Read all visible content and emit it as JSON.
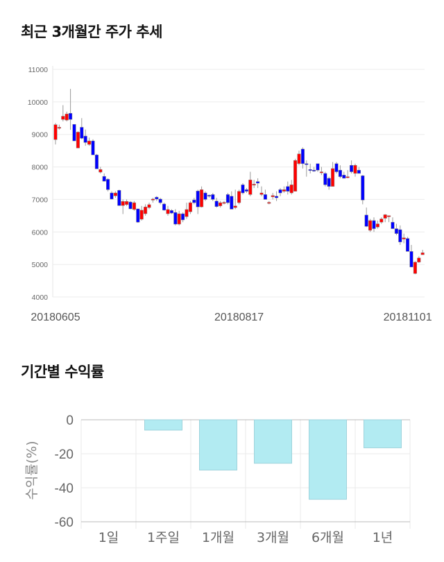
{
  "chart_data": [
    {
      "type": "candlestick",
      "title": "최근 3개월간 주가 추세",
      "ylim": [
        4000,
        11000
      ],
      "yticks": [
        4000,
        5000,
        6000,
        7000,
        8000,
        9000,
        10000,
        11000
      ],
      "x_tick_labels": [
        {
          "index": 0,
          "label": "20180605"
        },
        {
          "index": 49,
          "label": "20180817"
        },
        {
          "index": 94,
          "label": "20181101"
        }
      ],
      "grid": true,
      "colors": {
        "up": "#ff0000",
        "down": "#0000ff"
      },
      "ohlc_fields": [
        "open",
        "high",
        "low",
        "close"
      ],
      "ohlc": [
        [
          8840,
          9350,
          8690,
          9300
        ],
        [
          9200,
          9300,
          9150,
          9220
        ],
        [
          9460,
          9900,
          9400,
          9560
        ],
        [
          9440,
          9700,
          9400,
          9630
        ],
        [
          9650,
          10400,
          9140,
          9460
        ],
        [
          9310,
          9310,
          8800,
          8800
        ],
        [
          8580,
          9100,
          8580,
          9070
        ],
        [
          9220,
          9500,
          8850,
          8880
        ],
        [
          8950,
          9150,
          8650,
          8750
        ],
        [
          8690,
          8900,
          8650,
          8800
        ],
        [
          8800,
          8850,
          8370,
          8370
        ],
        [
          8370,
          8400,
          7940,
          7940
        ],
        [
          7840,
          8000,
          7800,
          7920
        ],
        [
          7710,
          7800,
          7560,
          7560
        ],
        [
          7620,
          7650,
          7250,
          7300
        ],
        [
          7200,
          7250,
          7000,
          7010
        ],
        [
          7110,
          7250,
          7050,
          7200
        ],
        [
          7280,
          7300,
          6800,
          6810
        ],
        [
          6810,
          7000,
          6550,
          6940
        ],
        [
          6840,
          7000,
          6800,
          6940
        ],
        [
          6920,
          6950,
          6700,
          6710
        ],
        [
          6690,
          6950,
          6650,
          6900
        ],
        [
          6710,
          6710,
          6280,
          6300
        ],
        [
          6390,
          6800,
          6350,
          6670
        ],
        [
          6560,
          6850,
          6500,
          6770
        ],
        [
          6750,
          6900,
          6700,
          6840
        ],
        [
          6990,
          7050,
          6900,
          7010
        ],
        [
          7070,
          7100,
          6950,
          7010
        ],
        [
          7010,
          7050,
          6850,
          6900
        ],
        [
          6860,
          6900,
          6650,
          6670
        ],
        [
          6560,
          6800,
          6500,
          6690
        ],
        [
          6660,
          6700,
          6550,
          6580
        ],
        [
          6600,
          6700,
          6200,
          6240
        ],
        [
          6240,
          6650,
          6200,
          6560
        ],
        [
          6560,
          6600,
          6300,
          6370
        ],
        [
          6470,
          6900,
          6400,
          6690
        ],
        [
          6620,
          6950,
          6550,
          6900
        ],
        [
          6985,
          7050,
          6850,
          6900
        ],
        [
          7260,
          7300,
          6550,
          6770
        ],
        [
          6770,
          7400,
          6750,
          7300
        ],
        [
          7200,
          7250,
          6950,
          7000
        ],
        [
          7130,
          7150,
          7050,
          7100
        ],
        [
          7150,
          7200,
          6950,
          7000
        ],
        [
          6950,
          7050,
          6750,
          6780
        ],
        [
          6800,
          6950,
          6750,
          6900
        ],
        [
          6900,
          6950,
          6850,
          6910
        ],
        [
          7150,
          7200,
          6850,
          6900
        ],
        [
          7100,
          7250,
          6700,
          6700
        ],
        [
          6750,
          7300,
          6700,
          6800
        ],
        [
          6900,
          7300,
          6850,
          7250
        ],
        [
          7450,
          7500,
          7150,
          7200
        ],
        [
          7300,
          7350,
          7200,
          7250
        ],
        [
          7150,
          7850,
          7100,
          7600
        ],
        [
          7450,
          7600,
          7350,
          7470
        ],
        [
          7550,
          7650,
          7350,
          7500
        ],
        [
          7150,
          7400,
          7100,
          7200
        ],
        [
          7150,
          7300,
          7000,
          7000
        ],
        [
          6900,
          6950,
          6850,
          6910
        ],
        [
          7080,
          7200,
          7000,
          7120
        ],
        [
          7100,
          7250,
          6950,
          7050
        ],
        [
          7300,
          7350,
          7100,
          7200
        ],
        [
          7250,
          7400,
          7200,
          7300
        ],
        [
          7400,
          7550,
          7150,
          7250
        ],
        [
          7200,
          7600,
          7150,
          7450
        ],
        [
          7250,
          8250,
          7250,
          8200
        ],
        [
          8100,
          8500,
          8050,
          8400
        ],
        [
          8550,
          8600,
          7950,
          8100
        ],
        [
          8100,
          8200,
          7700,
          8080
        ],
        [
          7920,
          8100,
          7800,
          7900
        ],
        [
          7900,
          8000,
          7850,
          7880
        ],
        [
          8100,
          8100,
          7850,
          7900
        ],
        [
          7850,
          8000,
          7750,
          7850
        ],
        [
          7800,
          7850,
          7400,
          7450
        ],
        [
          7650,
          7700,
          7300,
          7400
        ],
        [
          7400,
          8150,
          7400,
          7950
        ],
        [
          8100,
          8150,
          7800,
          7850
        ],
        [
          7900,
          8050,
          7650,
          7700
        ],
        [
          7750,
          7850,
          7650,
          7650
        ],
        [
          7700,
          7900,
          7650,
          7700
        ],
        [
          8050,
          8200,
          7800,
          7850
        ],
        [
          7800,
          8100,
          7700,
          8050
        ],
        [
          7900,
          8000,
          7800,
          7800
        ],
        [
          7730,
          7750,
          6850,
          6980
        ],
        [
          6520,
          6750,
          6150,
          6170
        ],
        [
          6050,
          6400,
          6000,
          6350
        ],
        [
          6350,
          6450,
          6000,
          6100
        ],
        [
          6150,
          6350,
          6100,
          6250
        ],
        [
          6300,
          6450,
          6250,
          6400
        ],
        [
          6420,
          6550,
          6300,
          6530
        ],
        [
          6500,
          6500,
          6300,
          6500
        ],
        [
          6300,
          6450,
          6100,
          6100
        ],
        [
          6100,
          6250,
          5900,
          5950
        ],
        [
          6070,
          6200,
          5600,
          5690
        ],
        [
          5780,
          5950,
          5650,
          5820
        ],
        [
          5800,
          5850,
          5400,
          5400
        ],
        [
          5400,
          5600,
          4920,
          4920
        ],
        [
          4720,
          5100,
          4700,
          5070
        ],
        [
          5070,
          5250,
          5050,
          5200
        ],
        [
          5300,
          5450,
          5300,
          5360
        ]
      ]
    },
    {
      "type": "bar",
      "title": "기간별 수익률",
      "ylabel": "수익률(%)",
      "categories": [
        "1일",
        "1주일",
        "1개월",
        "3개월",
        "6개월",
        "1년"
      ],
      "values": [
        0,
        -6.1,
        -29.6,
        -25.6,
        -46.8,
        -16.5
      ],
      "ylim": [
        -60,
        0
      ],
      "yticks": [
        0,
        -20,
        -40,
        -60
      ],
      "grid": true,
      "colors": {
        "bar": "#b2ebf2",
        "bar_border": "#9fd3dc"
      }
    }
  ]
}
